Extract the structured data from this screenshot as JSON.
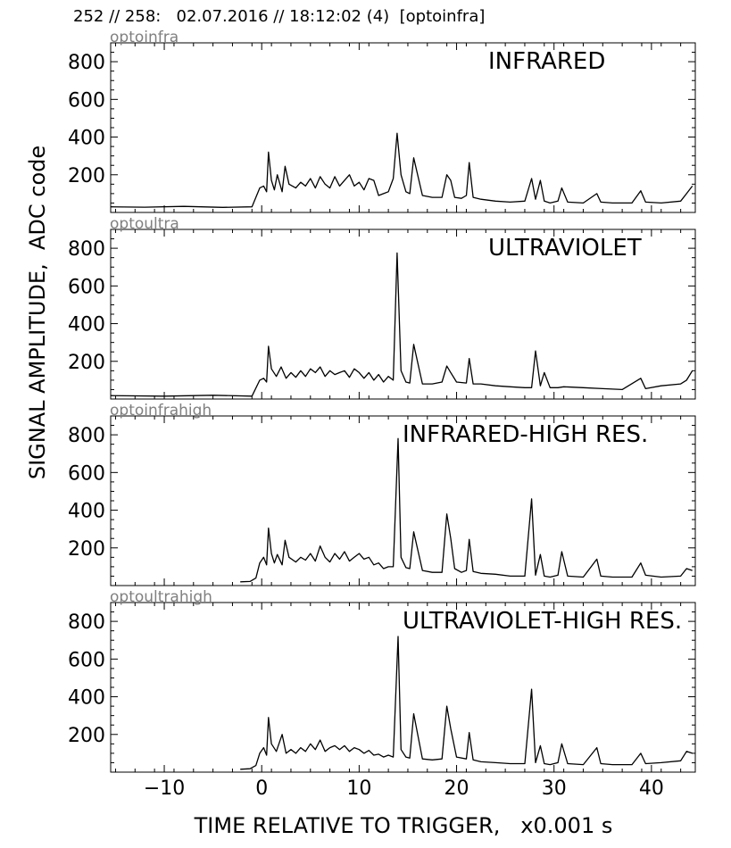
{
  "header": {
    "title": "252 // 258:   02.07.2016 // 18:12:02 (4)  [optoinfra]"
  },
  "figure": {
    "ylabel": "SIGNAL AMPLITUDE,  ADC code",
    "xlabel": "TIME RELATIVE TO TRIGGER,   x0.001 s"
  },
  "colors": {
    "trace": "#000000",
    "panel_tag": "#808080"
  },
  "chart_data": [
    {
      "type": "line",
      "tag": "optoinfra",
      "title": "INFRARED",
      "xlim": [
        -15.5,
        44.5
      ],
      "ylim": [
        0,
        900
      ],
      "yticks": [
        200,
        400,
        600,
        800
      ],
      "xticks": [
        -10,
        0,
        10,
        20,
        30,
        40
      ],
      "x_tick_labels_visible": false,
      "series": [
        {
          "x": [
            -15.5,
            -12,
            -8,
            -4,
            -1,
            -0.2,
            0.2,
            0.5,
            0.7,
            1.0,
            1.3,
            1.6,
            2.1,
            2.4,
            2.8,
            3.5,
            4.0,
            4.5,
            5.0,
            5.5,
            6.0,
            6.5,
            7.0,
            7.5,
            8.0,
            8.5,
            9.0,
            9.5,
            10.0,
            10.5,
            11.0,
            11.5,
            12.0,
            12.5,
            13.0,
            13.5,
            13.9,
            14.3,
            14.8,
            15.2,
            15.6,
            16.5,
            17.5,
            18.5,
            19.0,
            19.4,
            19.8,
            20.5,
            21.0,
            21.3,
            21.7,
            22.5,
            24,
            25.5,
            27,
            27.7,
            28.1,
            28.6,
            29,
            29.6,
            30.4,
            30.8,
            31.4,
            33,
            34.4,
            34.8,
            36,
            38,
            38.9,
            39.4,
            41,
            43,
            43.6,
            44.2
          ],
          "y": [
            30,
            28,
            32,
            27,
            30,
            130,
            140,
            110,
            320,
            170,
            120,
            200,
            110,
            245,
            150,
            130,
            160,
            140,
            180,
            130,
            190,
            150,
            130,
            190,
            140,
            170,
            200,
            140,
            160,
            120,
            180,
            170,
            90,
            100,
            110,
            180,
            420,
            200,
            110,
            100,
            290,
            90,
            80,
            80,
            200,
            170,
            80,
            75,
            90,
            265,
            80,
            70,
            60,
            55,
            60,
            180,
            70,
            170,
            60,
            50,
            60,
            130,
            55,
            50,
            100,
            55,
            50,
            50,
            115,
            55,
            50,
            60,
            100,
            140
          ]
        }
      ]
    },
    {
      "type": "line",
      "tag": "optoultra",
      "title": "ULTRAVIOLET",
      "xlim": [
        -15.5,
        44.5
      ],
      "ylim": [
        0,
        900
      ],
      "yticks": [
        200,
        400,
        600,
        800
      ],
      "xticks": [
        -10,
        0,
        10,
        20,
        30,
        40
      ],
      "x_tick_labels_visible": false,
      "series": [
        {
          "x": [
            -15.5,
            -10,
            -5,
            -1,
            -0.2,
            0.2,
            0.5,
            0.7,
            1.0,
            1.5,
            2.0,
            2.5,
            3.0,
            3.5,
            4.0,
            4.5,
            5.0,
            5.5,
            6.0,
            6.5,
            7.0,
            7.5,
            8.0,
            8.5,
            9.0,
            9.5,
            10.0,
            10.5,
            11.0,
            11.5,
            12.0,
            12.5,
            13.0,
            13.5,
            13.9,
            14.3,
            14.8,
            15.2,
            15.6,
            16.5,
            17.5,
            18.5,
            19.0,
            19.4,
            20.0,
            21.0,
            21.3,
            21.7,
            22.5,
            24,
            25.5,
            27,
            27.7,
            28.1,
            28.6,
            29,
            29.6,
            30.4,
            31,
            33,
            35,
            37,
            38.9,
            39.4,
            41,
            43,
            43.6,
            44.2
          ],
          "y": [
            18,
            15,
            20,
            15,
            100,
            110,
            90,
            280,
            160,
            120,
            170,
            110,
            140,
            115,
            150,
            120,
            160,
            140,
            170,
            120,
            150,
            130,
            140,
            150,
            115,
            160,
            140,
            110,
            140,
            100,
            130,
            90,
            120,
            100,
            775,
            150,
            90,
            85,
            290,
            80,
            80,
            90,
            175,
            140,
            90,
            85,
            215,
            80,
            80,
            70,
            65,
            60,
            60,
            255,
            70,
            140,
            60,
            60,
            65,
            60,
            55,
            50,
            110,
            55,
            70,
            80,
            100,
            150
          ]
        }
      ]
    },
    {
      "type": "line",
      "tag": "optoinfrahigh",
      "title": "INFRARED-HIGH RES.",
      "xlim": [
        -15.5,
        44.5
      ],
      "ylim": [
        0,
        900
      ],
      "yticks": [
        200,
        400,
        600,
        800
      ],
      "xticks": [
        -10,
        0,
        10,
        20,
        30,
        40
      ],
      "x_tick_labels_visible": false,
      "series": [
        {
          "x": [
            -2.2,
            -1.2,
            -0.6,
            -0.2,
            0.2,
            0.5,
            0.7,
            1.0,
            1.3,
            1.6,
            2.1,
            2.4,
            2.8,
            3.5,
            4.0,
            4.5,
            5.0,
            5.5,
            6.0,
            6.5,
            7.0,
            7.5,
            8.0,
            8.5,
            9.0,
            9.5,
            10.0,
            10.5,
            11.0,
            11.5,
            12.0,
            12.5,
            13.0,
            13.5,
            14.0,
            14.3,
            14.8,
            15.2,
            15.6,
            16.5,
            17.5,
            18.5,
            19.0,
            19.4,
            19.8,
            20.5,
            21.0,
            21.3,
            21.7,
            22.5,
            24,
            25.5,
            27,
            27.7,
            28.1,
            28.6,
            29,
            29.6,
            30.4,
            30.8,
            31.4,
            33,
            34.4,
            34.8,
            36,
            38,
            38.9,
            39.4,
            41,
            43,
            43.6,
            44.2
          ],
          "y": [
            20,
            22,
            40,
            120,
            150,
            110,
            305,
            170,
            120,
            165,
            110,
            240,
            150,
            125,
            150,
            135,
            170,
            130,
            210,
            150,
            125,
            170,
            140,
            180,
            130,
            150,
            170,
            140,
            150,
            110,
            120,
            90,
            100,
            100,
            780,
            150,
            95,
            90,
            285,
            80,
            70,
            70,
            380,
            250,
            90,
            70,
            80,
            245,
            75,
            65,
            60,
            50,
            50,
            460,
            55,
            165,
            50,
            45,
            55,
            180,
            50,
            45,
            140,
            50,
            45,
            45,
            120,
            55,
            45,
            50,
            90,
            80
          ]
        }
      ]
    },
    {
      "type": "line",
      "tag": "optoultrahigh",
      "title": "ULTRAVIOLET-HIGH RES.",
      "xlim": [
        -15.5,
        44.5
      ],
      "ylim": [
        0,
        900
      ],
      "yticks": [
        200,
        400,
        600,
        800
      ],
      "xticks": [
        -10,
        0,
        10,
        20,
        30,
        40
      ],
      "x_tick_labels_visible": true,
      "series": [
        {
          "x": [
            -2.2,
            -1.2,
            -0.6,
            -0.2,
            0.2,
            0.5,
            0.7,
            1.0,
            1.5,
            2.1,
            2.5,
            3.0,
            3.5,
            4.0,
            4.5,
            5.0,
            5.5,
            6.0,
            6.5,
            7.0,
            7.5,
            8.0,
            8.5,
            9.0,
            9.5,
            10.0,
            10.5,
            11.0,
            11.5,
            12.0,
            12.5,
            13.0,
            13.5,
            14.0,
            14.3,
            14.8,
            15.2,
            15.6,
            16.5,
            17.5,
            18.5,
            19.0,
            19.4,
            20.0,
            21.0,
            21.3,
            21.7,
            22.5,
            24,
            25.5,
            27,
            27.7,
            28.1,
            28.6,
            29,
            29.6,
            30.4,
            30.8,
            31.4,
            33,
            34.4,
            34.8,
            36,
            38,
            38.9,
            39.4,
            41,
            43,
            43.6,
            44.2
          ],
          "y": [
            15,
            18,
            35,
            100,
            130,
            90,
            290,
            150,
            110,
            200,
            100,
            120,
            100,
            130,
            110,
            150,
            120,
            170,
            110,
            130,
            140,
            120,
            140,
            110,
            130,
            120,
            100,
            115,
            90,
            95,
            80,
            90,
            80,
            720,
            120,
            80,
            75,
            310,
            70,
            65,
            70,
            350,
            230,
            80,
            70,
            210,
            65,
            55,
            50,
            45,
            45,
            440,
            50,
            140,
            45,
            40,
            50,
            150,
            45,
            40,
            130,
            45,
            40,
            40,
            100,
            45,
            50,
            60,
            110,
            100
          ]
        }
      ]
    }
  ]
}
